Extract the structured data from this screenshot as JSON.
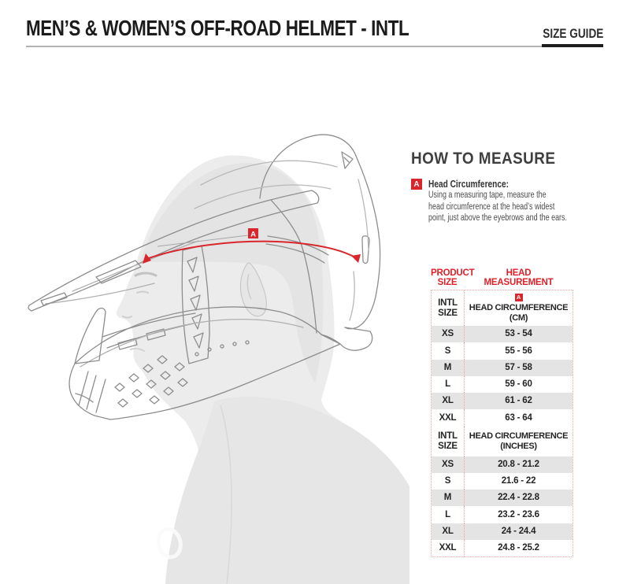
{
  "header": {
    "title": "MEN’S & WOMEN’S OFF-ROAD HELMET - INTL",
    "size_guide_label": "SIZE GUIDE"
  },
  "how_to_measure": {
    "heading": "HOW TO MEASURE",
    "marker": "A",
    "item_title": "Head Circumference:",
    "item_lines": [
      "Using a measuring tape, measure the",
      "head circumference at the head’s widest",
      "point, just above the eyebrows and the ears."
    ]
  },
  "illustration": {
    "description": "technical line drawing of off-road helmet worn by man, side profile facing left, red measuring tape around head",
    "marker": "A"
  },
  "size_table": {
    "column_headers": {
      "product": [
        "PRODUCT",
        "SIZE"
      ],
      "measurement": [
        "HEAD",
        "MEASUREMENT"
      ]
    },
    "sections": [
      {
        "marker": "A",
        "size_label": [
          "INTL",
          "SIZE"
        ],
        "measurement_label": [
          "HEAD CIRCUMFERENCE",
          "(CM)"
        ],
        "rows": [
          {
            "size": "XS",
            "range": "53 - 54"
          },
          {
            "size": "S",
            "range": "55 - 56"
          },
          {
            "size": "M",
            "range": "57 - 58"
          },
          {
            "size": "L",
            "range": "59 - 60"
          },
          {
            "size": "XL",
            "range": "61 - 62"
          },
          {
            "size": "XXL",
            "range": "63 - 64"
          }
        ]
      },
      {
        "marker": "",
        "size_label": [
          "INTL",
          "SIZE"
        ],
        "measurement_label": [
          "HEAD CIRCUMFERENCE",
          "(INCHES)"
        ],
        "rows": [
          {
            "size": "XS",
            "range": "20.8 - 21.2"
          },
          {
            "size": "S",
            "range": "21.6 - 22"
          },
          {
            "size": "M",
            "range": "22.4 - 22.8"
          },
          {
            "size": "L",
            "range": "23.2 - 23.6"
          },
          {
            "size": "XL",
            "range": "24 - 24.4"
          },
          {
            "size": "XXL",
            "range": "24.8 - 25.2"
          }
        ]
      }
    ]
  },
  "colors": {
    "accent_red": "#d8262c",
    "header_red_text": "#de2029",
    "table_dotted_border": "#f0a2a0",
    "row_alt_gray": "#e4e4e4",
    "silhouette_gray": "#ececec",
    "lineart_gray": "#8d8d8d"
  }
}
